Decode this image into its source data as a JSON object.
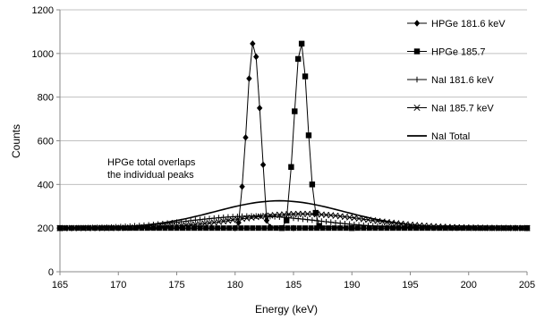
{
  "chart_data": {
    "type": "line",
    "xlabel": "Energy (keV)",
    "ylabel": "Counts",
    "xlim": [
      165,
      205
    ],
    "ylim": [
      0,
      1200
    ],
    "xticks": [
      165,
      170,
      175,
      180,
      185,
      190,
      195,
      200,
      205
    ],
    "yticks": [
      0,
      200,
      400,
      600,
      800,
      1000,
      1200
    ],
    "grid": "horizontal",
    "legend_position": "right",
    "annotation": [
      "HPGe total overlaps",
      "the individual peaks"
    ],
    "series": [
      {
        "name": "HPGe 181.6 keV",
        "marker": "diamond",
        "x": [
          165,
          180,
          180.3,
          180.6,
          180.9,
          181.2,
          181.5,
          181.8,
          182.1,
          182.4,
          182.7,
          183,
          185,
          205
        ],
        "y": [
          200,
          200,
          225,
          390,
          615,
          885,
          1045,
          985,
          750,
          490,
          235,
          205,
          200,
          200
        ]
      },
      {
        "name": "HPGe 185.7",
        "marker": "square",
        "x": [
          165,
          184,
          184.4,
          184.8,
          185.1,
          185.4,
          185.7,
          186.0,
          186.3,
          186.6,
          186.9,
          187.2,
          190,
          205
        ],
        "y": [
          200,
          200,
          235,
          480,
          735,
          975,
          1045,
          895,
          625,
          400,
          270,
          210,
          200,
          200
        ]
      },
      {
        "name": "NaI 181.6 keV",
        "marker": "plus",
        "peak_center": 181.6,
        "peak_height": 55,
        "baseline": 200
      },
      {
        "name": "NaI 185.7 keV",
        "marker": "x",
        "peak_center": 185.7,
        "peak_height": 65,
        "baseline": 200
      },
      {
        "name": "NaI Total",
        "marker": "none",
        "peak_center": 183.8,
        "peak_height": 125,
        "baseline": 200
      }
    ]
  },
  "colors": {
    "series": "#000000",
    "grid": "#c0c0c0"
  }
}
